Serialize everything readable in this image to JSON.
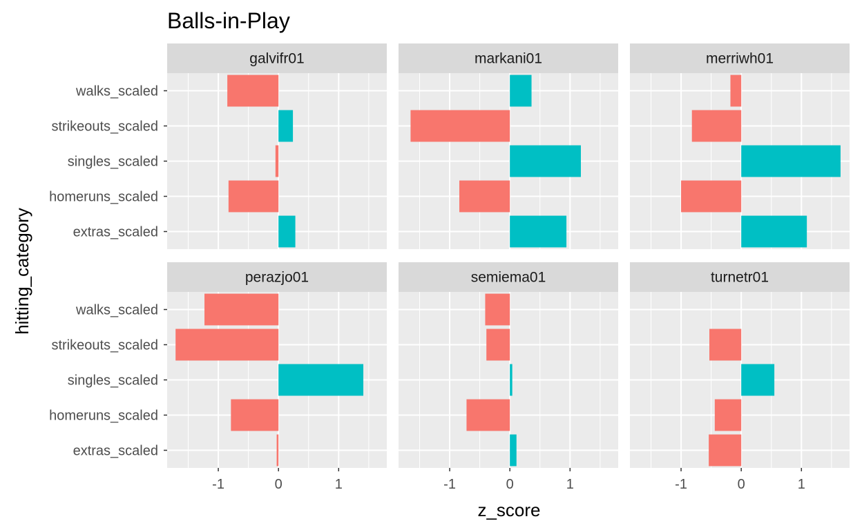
{
  "chart_data": {
    "type": "bar",
    "orientation": "horizontal",
    "layout": "facet_wrap",
    "title": "Balls-in-Play",
    "xlabel": "z_score",
    "ylabel": "hitting_category",
    "xlim": [
      -1.85,
      1.8
    ],
    "x_ticks": [
      -1,
      0,
      1
    ],
    "x_tick_labels": [
      "-1",
      "0",
      "1"
    ],
    "categories": [
      "walks_scaled",
      "strikeouts_scaled",
      "singles_scaled",
      "homeruns_scaled",
      "extras_scaled"
    ],
    "grid": true,
    "legend": "none",
    "colors": {
      "negative": "#F8766D",
      "positive": "#00BFC4",
      "panel_bg": "#EBEBEB",
      "strip_bg": "#D9D9D9",
      "grid": "#FFFFFF"
    },
    "facets": [
      {
        "name": "galvifr01",
        "values": [
          -0.85,
          0.24,
          -0.05,
          -0.83,
          0.28
        ]
      },
      {
        "name": "markani01",
        "values": [
          0.36,
          -1.65,
          1.18,
          -0.84,
          0.94
        ]
      },
      {
        "name": "merriwh01",
        "values": [
          -0.18,
          -0.82,
          1.65,
          -1.0,
          1.09
        ]
      },
      {
        "name": "perazjo01",
        "values": [
          -1.23,
          -1.71,
          1.41,
          -0.79,
          -0.03
        ]
      },
      {
        "name": "semiema01",
        "values": [
          -0.41,
          -0.39,
          0.04,
          -0.72,
          0.11
        ]
      },
      {
        "name": "turnetr01",
        "values": [
          0.0,
          -0.53,
          0.55,
          -0.44,
          -0.54
        ]
      }
    ]
  }
}
